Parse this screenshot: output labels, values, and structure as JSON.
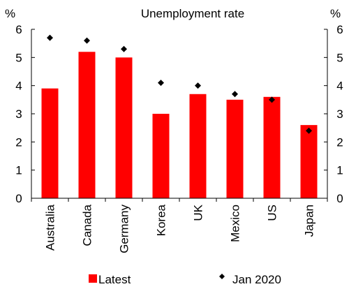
{
  "chart_data": {
    "type": "bar",
    "title": "Unemployment rate",
    "ylabel_left": "%",
    "ylabel_right": "%",
    "ylim": [
      0,
      6
    ],
    "yticks": [
      "0",
      "1",
      "2",
      "3",
      "4",
      "5",
      "6"
    ],
    "categories": [
      "Australia",
      "Canada",
      "Germany",
      "Korea",
      "UK",
      "Mexico",
      "US",
      "Japan"
    ],
    "series": [
      {
        "name": "Latest",
        "type": "bar",
        "color": "#ff0000",
        "values": [
          3.9,
          5.2,
          5.0,
          3.0,
          3.7,
          3.5,
          3.6,
          2.6
        ]
      },
      {
        "name": "Jan 2020",
        "type": "scatter",
        "marker": "diamond",
        "color": "#000000",
        "values": [
          5.7,
          5.6,
          5.3,
          4.1,
          4.0,
          3.7,
          3.5,
          2.4
        ]
      }
    ],
    "grid": false,
    "legend": "bottom"
  }
}
